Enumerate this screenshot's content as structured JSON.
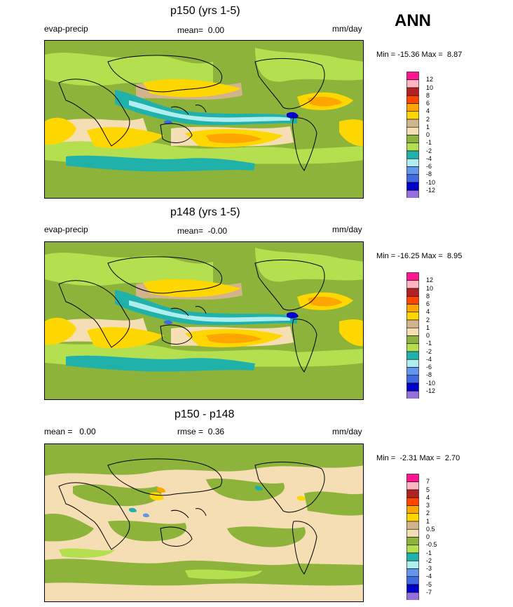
{
  "season": "ANN",
  "panels": [
    {
      "title": "p150 (yrs 1-5)",
      "left_label": "evap-precip",
      "mean_label": "mean=",
      "mean_value": "0.00",
      "right_label": "mm/day",
      "rmse_label": "",
      "rmse_value": "",
      "min_label": "Min =",
      "min_value": "-15.36",
      "max_label": "Max =",
      "max_value": "8.87",
      "levels": [
        "12",
        "10",
        "8",
        "6",
        "4",
        "2",
        "1",
        "0",
        "-1",
        "-2",
        "-4",
        "-6",
        "-8",
        "-10",
        "-12"
      ],
      "colors": [
        "#ff1493",
        "#ffb6c1",
        "#b22222",
        "#ff4500",
        "#ffa500",
        "#ffd700",
        "#d2b48c",
        "#f5deb3",
        "#8db33a",
        "#b4e050",
        "#20b2aa",
        "#afeeee",
        "#6495ed",
        "#4169e1",
        "#0000cd",
        "#9370db"
      ]
    },
    {
      "title": "p148 (yrs 1-5)",
      "left_label": "evap-precip",
      "mean_label": "mean=",
      "mean_value": "-0.00",
      "right_label": "mm/day",
      "rmse_label": "",
      "rmse_value": "",
      "min_label": "Min =",
      "min_value": "-16.25",
      "max_label": "Max =",
      "max_value": "8.95",
      "levels": [
        "12",
        "10",
        "8",
        "6",
        "4",
        "2",
        "1",
        "0",
        "-1",
        "-2",
        "-4",
        "-6",
        "-8",
        "-10",
        "-12"
      ],
      "colors": [
        "#ff1493",
        "#ffb6c1",
        "#b22222",
        "#ff4500",
        "#ffa500",
        "#ffd700",
        "#d2b48c",
        "#f5deb3",
        "#8db33a",
        "#b4e050",
        "#20b2aa",
        "#afeeee",
        "#6495ed",
        "#4169e1",
        "#0000cd",
        "#9370db"
      ]
    },
    {
      "title": "p150 - p148",
      "left_label": "mean =",
      "left_value": "0.00",
      "mean_label": "rmse =",
      "mean_value": "0.36",
      "right_label": "mm/day",
      "min_label": "Min =",
      "min_value": "-2.31",
      "max_label": "Max =",
      "max_value": "2.70",
      "levels": [
        "7",
        "5",
        "4",
        "3",
        "2",
        "1",
        "0.5",
        "0",
        "-0.5",
        "-1",
        "-2",
        "-3",
        "-4",
        "-5",
        "-7"
      ],
      "colors": [
        "#ff1493",
        "#ffb6c1",
        "#b22222",
        "#ff4500",
        "#ffa500",
        "#ffd700",
        "#d2b48c",
        "#f5deb3",
        "#8db33a",
        "#b4e050",
        "#20b2aa",
        "#afeeee",
        "#6495ed",
        "#4169e1",
        "#0000cd",
        "#9370db"
      ]
    }
  ]
}
